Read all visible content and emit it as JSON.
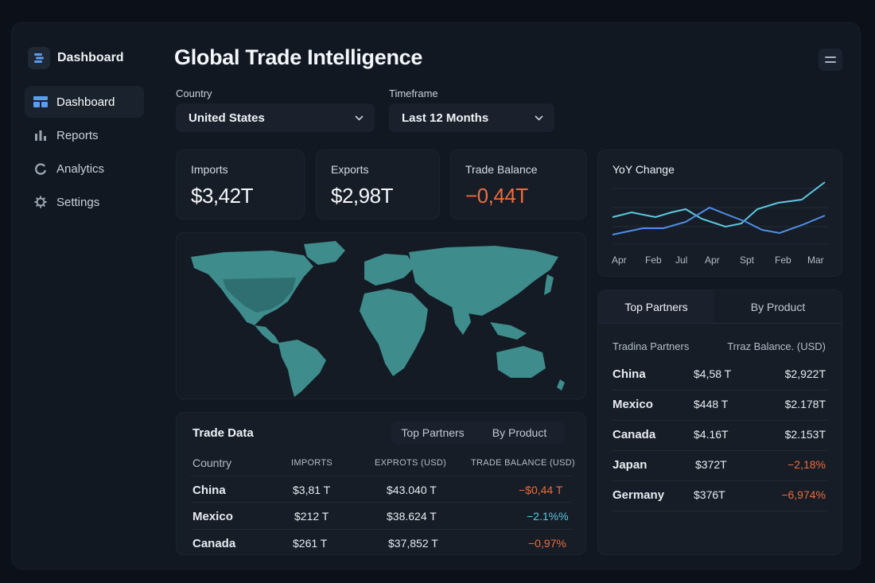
{
  "sidebar": {
    "brand_title": "Dashboard",
    "items": [
      {
        "label": "Dashboard",
        "icon": "dashboard-icon",
        "active": true
      },
      {
        "label": "Reports",
        "icon": "bar-chart-icon"
      },
      {
        "label": "Analytics",
        "icon": "analytics-icon"
      },
      {
        "label": "Settings",
        "icon": "gear-icon"
      }
    ]
  },
  "header": {
    "title": "Global Trade Intelligence"
  },
  "filters": {
    "country_label": "Country",
    "country_value": "United States",
    "timeframe_label": "Timeframe",
    "timeframe_value": "Last 12 Months"
  },
  "kpis": {
    "imports": {
      "label": "Imports",
      "value": "$3,42T"
    },
    "exports": {
      "label": "Exports",
      "value": "$2,98T"
    },
    "balance": {
      "label": "Trade Balance",
      "value": "−0,44T"
    }
  },
  "yoy": {
    "title": "YoY Change",
    "months": [
      "Apr",
      "Feb",
      "Jul",
      "Apr",
      "Spt",
      "Feb",
      "Mar"
    ]
  },
  "trade_data": {
    "title": "Trade Data",
    "tabs": [
      "Top Partners",
      "By Product"
    ],
    "columns": [
      "Country",
      "IMPORTS",
      "EXPROTS (USD)",
      "TRADE BALANCE (USD)"
    ],
    "rows": [
      {
        "country": "China",
        "imports": "$3,81 T",
        "exports": "$43.040 T",
        "balance": "−$0,44 T",
        "tone": "neg"
      },
      {
        "country": "Mexico",
        "imports": "$212 T",
        "exports": "$38.624 T",
        "balance": "−2.1%%",
        "tone": "pos"
      },
      {
        "country": "Canada",
        "imports": "$261 T",
        "exports": "$37,852 T",
        "balance": "−0,97%",
        "tone": "neg"
      }
    ]
  },
  "partners": {
    "tabs": [
      "Top Partners",
      "By Product"
    ],
    "col_left": "Tradina Partners",
    "col_right": "Trraz Balance. (USD)",
    "rows": [
      {
        "country": "China",
        "value": "$4,58 T",
        "balance": "$2,922T",
        "tone": "plain"
      },
      {
        "country": "Mexico",
        "value": "$448 T",
        "balance": "$2.178T",
        "tone": "plain"
      },
      {
        "country": "Canada",
        "value": "$4.16T",
        "balance": "$2.153T",
        "tone": "plain"
      },
      {
        "country": "Japan",
        "value": "$372T",
        "balance": "−2,18%",
        "tone": "neg"
      },
      {
        "country": "Germany",
        "value": "$376T",
        "balance": "−6,974%",
        "tone": "neg"
      }
    ]
  },
  "colors": {
    "accent": "#4f8fe6",
    "negative": "#ee6b3b",
    "positive": "#5cc9e0",
    "map_land": "#3e8c8c",
    "map_highlight": "#2f6f72"
  }
}
